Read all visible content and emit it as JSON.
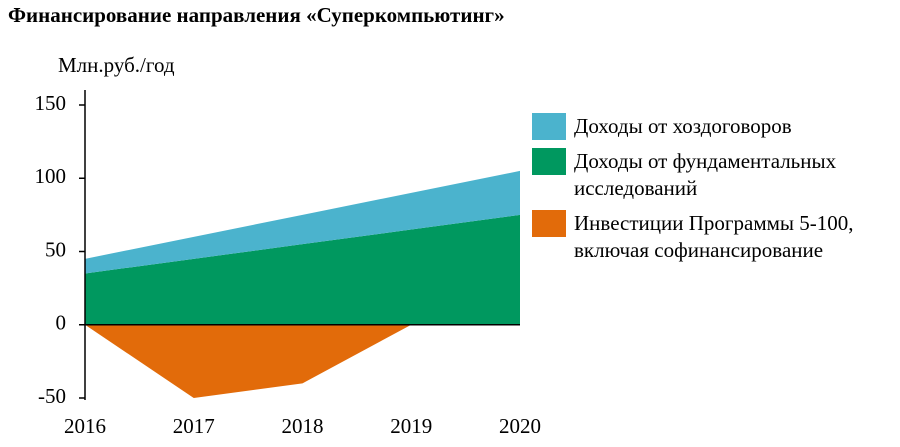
{
  "chart_data": {
    "type": "stacked_area",
    "title": "Финансирование направления «Суперкомпьютинг»",
    "y_label": "Млн.руб./год",
    "x": [
      2016,
      2017,
      2018,
      2019,
      2020
    ],
    "xlim": [
      2016,
      2020
    ],
    "xticks": [
      2016,
      2017,
      2018,
      2019,
      2020
    ],
    "ylim": [
      -50,
      150
    ],
    "yticks": [
      -50,
      0,
      50,
      100,
      150
    ],
    "legend": "right",
    "series": [
      {
        "name": "Доходы от фундаментальных исследований",
        "color": "#00985f",
        "values": [
          35,
          45,
          55,
          65,
          75
        ]
      },
      {
        "name": "Доходы от хоздоговоров",
        "color": "#4bb3cd",
        "values": [
          10,
          15,
          20,
          25,
          30
        ]
      },
      {
        "name": "Инвестиции Программы 5-100, включая софинансирование",
        "color": "#e26b0a",
        "values": [
          0,
          -50,
          -40,
          0,
          0
        ]
      }
    ],
    "legend_order": [
      1,
      0,
      2
    ]
  }
}
